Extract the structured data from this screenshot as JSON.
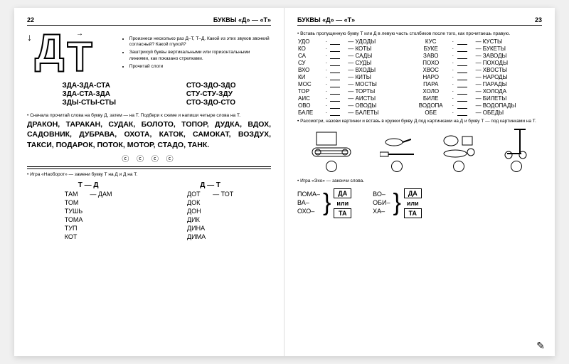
{
  "left": {
    "pageNum": "22",
    "header": "БУКВЫ «Д» — «Т»",
    "letterD": "Д",
    "letterT": "Т",
    "instructions": [
      "Произнеси несколько раз Д–Т, Т–Д. Какой из этих звуков звонкий согласный? Какой глухой?",
      "Заштрихуй буквы вертикальными или горизонтальными линиями, как показано стрелками.",
      "Прочитай слоги"
    ],
    "syllL": [
      "ЗДА-ЗДА-СТА",
      "ЗДА-СТА-ЗДА",
      "ЗДЫ-СТЫ-СТЫ"
    ],
    "syllR": [
      "СТО-ЗДО-ЗДО",
      "СТУ-СТУ-ЗДУ",
      "СТО-ЗДО-СТО"
    ],
    "task1": "Сначала прочитай слова на букву Д, затем — на Т. Подбери к схеме и напиши четыре слова на Т.",
    "words": "ДРАКОН, ТАРАКАН, СУДАК, БОЛОТО, ТОПОР, ДУДКА, ВДОХ, САДОВНИК, ДУБРАВА, ОХОТА, КАТОК, САМОКАТ, ВОЗДУХ, ТАКСИ, ПОДАРОК, ПОТОК, МОТОР, СТАДО, ТАНК.",
    "circles": "ⓒ ⓒ ⓒ ⓒ",
    "task2": "Игра «Наоборот» — замени букву Т на Д и Д на Т.",
    "col1h": "Т  —  Д",
    "col2h": "Д  —  Т",
    "col1": [
      [
        "ТАМ",
        "— ДАМ"
      ],
      [
        "ТОМ",
        ""
      ],
      [
        "ТУШЬ",
        ""
      ],
      [
        "ТОМА",
        ""
      ],
      [
        "ТУП",
        ""
      ],
      [
        "КОТ",
        ""
      ]
    ],
    "col2": [
      [
        "ДОТ",
        "— ТОТ"
      ],
      [
        "ДОК",
        ""
      ],
      [
        "ДОН",
        ""
      ],
      [
        "ДИК",
        ""
      ],
      [
        "ДИНА",
        ""
      ],
      [
        "ДИМА",
        ""
      ]
    ]
  },
  "right": {
    "header": "БУКВЫ «Д» — «Т»",
    "pageNum": "23",
    "task1": "Вставь пропущенную букву Т или Д в левую часть столбиков после того, как прочитаешь правую.",
    "rows": [
      [
        "УДО",
        "— УДОДЫ",
        "КУС",
        "— КУСТЫ"
      ],
      [
        "КО",
        "— КОТЫ",
        "БУКЕ",
        "— БУКЕТЫ"
      ],
      [
        "СА",
        "— САДЫ",
        "ЗАВО",
        "— ЗАВОДЫ"
      ],
      [
        "СУ",
        "— СУДЫ",
        "ПОХО",
        "— ПОХОДЫ"
      ],
      [
        "ВХО",
        "— ВХОДЫ",
        "ХВОС",
        "— ХВОСТЫ"
      ],
      [
        "КИ",
        "— КИТЫ",
        "НАРО",
        "— НАРОДЫ"
      ],
      [
        "МОС",
        "— МОСТЫ",
        "ПАРА",
        "— ПАРАДЫ"
      ],
      [
        "ТОР",
        "— ТОРТЫ",
        "ХОЛО",
        "— ХОЛОДА"
      ],
      [
        "АИС",
        "— АИСТЫ",
        "БИЛЕ",
        "— БИЛЕТЫ"
      ],
      [
        "ОВО",
        "— ОВОДЫ",
        "ВОДОПА",
        "— ВОДОПАДЫ"
      ],
      [
        "БАЛЕ",
        "— БАЛЕТЫ",
        "ОБЕ",
        "— ОБЕДЫ"
      ]
    ],
    "task2": "Рассмотри, назови картинки и вставь в кружки букву Д под картинками на Д и букву Т — под картинками на Т.",
    "task3": "Игра «Эхо» — закончи слова.",
    "echo1": [
      "ПОМА–",
      "ВА–",
      "ОХО–"
    ],
    "echo2": [
      "ВО–",
      "ОБИ–",
      "ХА–"
    ],
    "box": [
      "ДА",
      "ТА"
    ],
    "ili": "или"
  }
}
